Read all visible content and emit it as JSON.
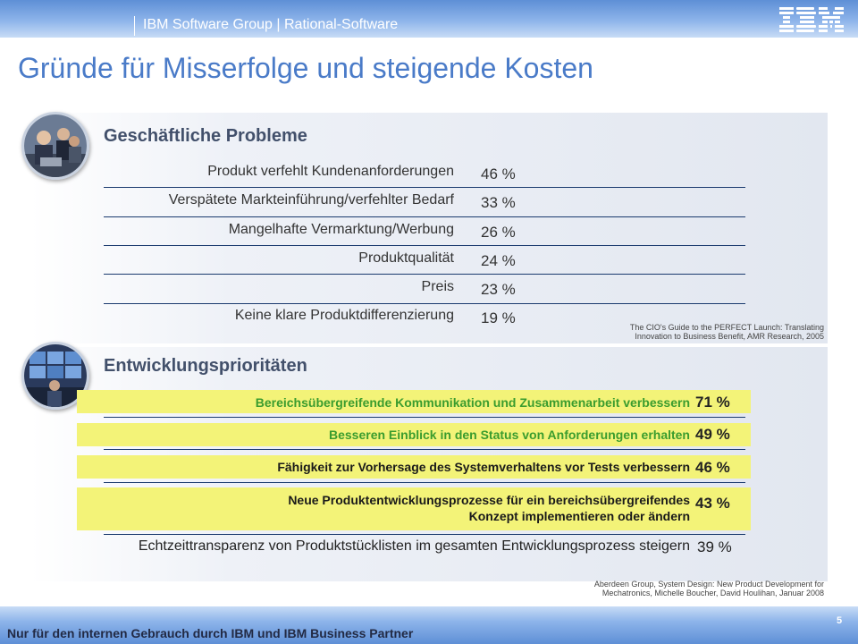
{
  "header": {
    "group_title": "IBM Software Group | Rational-Software",
    "logo_icon": "ibm-logo"
  },
  "title": "Gründe für Misserfolge und steigende Kosten",
  "business_problems": {
    "heading": "Geschäftliche Probleme",
    "photo_icon": "business-people-photo",
    "rows": [
      {
        "label": "Produkt verfehlt Kundenanforderungen",
        "value": "46 %"
      },
      {
        "label": "Verspätete Markteinführung/verfehlter Bedarf",
        "value": "33 %"
      },
      {
        "label": "Mangelhafte Vermarktung/Werbung",
        "value": "26 %"
      },
      {
        "label": "Produktqualität",
        "value": "24 %"
      },
      {
        "label": "Preis",
        "value": "23 %"
      },
      {
        "label": "Keine klare Produktdifferenzierung",
        "value": "19 %"
      }
    ],
    "source_line1": "The CIO's Guide to the PERFECT Launch: Translating",
    "source_line2": "Innovation to Business Benefit, AMR Research, 2005"
  },
  "development_priorities": {
    "heading": "Entwicklungsprioritäten",
    "photo_icon": "control-room-photo",
    "rows": [
      {
        "label": "Bereichsübergreifende Kommunikation und Zusammenarbeit verbessern",
        "value": "71 %",
        "highlight": true,
        "color": "#3a9c2e"
      },
      {
        "label": "Besseren Einblick in den Status von Anforderungen erhalten",
        "value": "49 %",
        "highlight": true,
        "color": "#3a9c2e"
      },
      {
        "label": "Fähigkeit zur Vorhersage des Systemverhaltens vor Tests verbessern",
        "value": "46 %",
        "highlight": true,
        "color": "#1a1a1a"
      },
      {
        "label_line1": "Neue Produktentwicklungsprozesse für ein bereichsübergreifendes",
        "label_line2": "Konzept implementieren oder ändern",
        "value": "43 %",
        "highlight": true,
        "color": "#1a1a1a"
      },
      {
        "label": "Echtzeittransparenz von Produktstücklisten im gesamten Entwicklungsprozess steigern",
        "value": "39 %",
        "highlight": false
      }
    ],
    "source_line1": "Aberdeen Group, System Design: New Product Development for",
    "source_line2": "Mechatronics, Michelle Boucher, David Houlihan, Januar 2008"
  },
  "footer": {
    "text": "Nur für den internen Gebrauch durch IBM und IBM Business Partner",
    "page_number": "5"
  },
  "colors": {
    "title_blue": "#4a7bc8",
    "highlight_yellow": "#f3f378",
    "priority_green": "#3a9c2e",
    "rule_navy": "#1a3a6e"
  }
}
